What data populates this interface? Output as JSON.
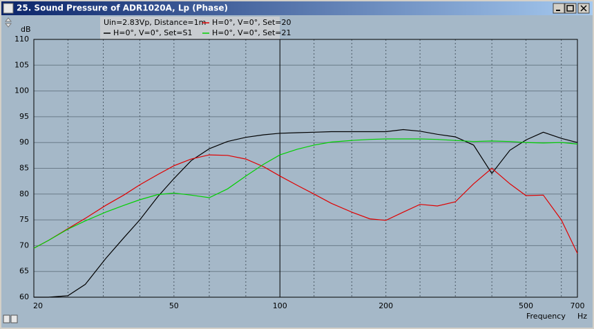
{
  "window": {
    "title": "25. Sound Pressure of ADR1020A, Lp (Phase)"
  },
  "chart_data": {
    "type": "line",
    "legend_header": "Uin=2.83Vp, Distance=1m",
    "ylabel": "dB",
    "xlabel": "Frequency",
    "x_unit": "Hz",
    "xscale": "log",
    "x": [
      20,
      22,
      25,
      28,
      32,
      36,
      40,
      45,
      50,
      56,
      63,
      71,
      80,
      90,
      100,
      112,
      125,
      140,
      160,
      180,
      200,
      224,
      250,
      280,
      315,
      355,
      400,
      450,
      500,
      560,
      630,
      700
    ],
    "series": [
      {
        "name": "H=0°, V=0°, Set=S1",
        "color": "#000000",
        "values": [
          60,
          60,
          60.3,
          62.5,
          67.5,
          71.5,
          75,
          79.5,
          83,
          86.5,
          88.8,
          90.2,
          91,
          91.5,
          91.8,
          91.9,
          92,
          92.1,
          92.1,
          92.1,
          92.1,
          92.5,
          92.2,
          91.6,
          91.1,
          89.5,
          84,
          88.5,
          90.5,
          92,
          90.8,
          90
        ]
      },
      {
        "name": "H=0°, V=0°, Set=20",
        "color": "#e00000",
        "values": [
          69.5,
          71,
          73.3,
          75.3,
          77.8,
          79.8,
          81.8,
          83.8,
          85.5,
          86.8,
          87.6,
          87.5,
          86.8,
          85.3,
          83.5,
          81.7,
          80,
          78.2,
          76.5,
          75.2,
          74.9,
          76.5,
          78,
          77.7,
          78.5,
          82,
          85,
          82,
          79.7,
          79.8,
          75,
          68.5
        ]
      },
      {
        "name": "H=0°, V=0°, Set=21",
        "color": "#00d000",
        "values": [
          69.5,
          71,
          73.2,
          74.8,
          76.5,
          77.8,
          78.9,
          79.9,
          80.2,
          79.8,
          79.3,
          81,
          83.5,
          85.8,
          87.6,
          88.7,
          89.5,
          90.1,
          90.4,
          90.6,
          90.7,
          90.7,
          90.7,
          90.6,
          90.4,
          90.2,
          90.3,
          90.2,
          90,
          89.9,
          90,
          89.7
        ]
      }
    ],
    "xlim": [
      20,
      700
    ],
    "ylim": [
      60,
      110
    ],
    "xticks": [
      20,
      50,
      100,
      200,
      500,
      700
    ],
    "xminor": [
      25,
      31.5,
      40,
      63,
      80,
      125,
      160,
      250,
      315,
      400,
      630
    ],
    "xmajor_solid": 100,
    "yticks": [
      60,
      65,
      70,
      75,
      80,
      85,
      90,
      95,
      100,
      105,
      110
    ],
    "grid": true
  }
}
